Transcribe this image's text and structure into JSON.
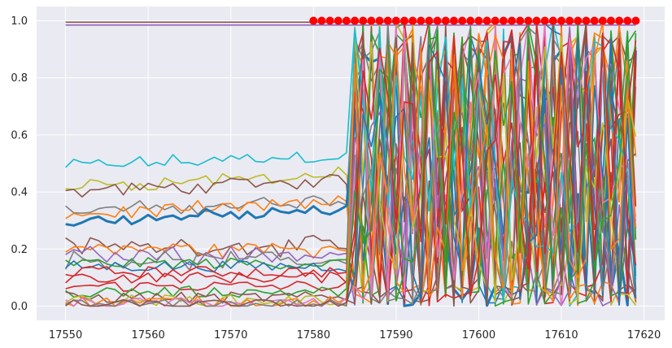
{
  "chart_data": {
    "type": "line",
    "title": "",
    "xlabel": "",
    "ylabel": "",
    "xlim": [
      17546.5,
      17622.5
    ],
    "ylim": [
      -0.05,
      1.05
    ],
    "grid": true,
    "x_ticks": [
      "17550",
      "17560",
      "17570",
      "17580",
      "17590",
      "17600",
      "17610",
      "17620"
    ],
    "y_ticks": [
      "0.0",
      "0.2",
      "0.4",
      "0.6",
      "0.8",
      "1.0"
    ],
    "x_start": 17550,
    "x_end": 17619,
    "change_point": 17584,
    "palette": [
      "#1f77b4",
      "#ff7f0e",
      "#2ca02c",
      "#d62728",
      "#9467bd",
      "#8c564b",
      "#e377c2",
      "#7f7f7f",
      "#bcbd22",
      "#17becf"
    ],
    "series_pre_levels": [
      0.995,
      0.985,
      0.49,
      0.42,
      0.4,
      0.33,
      0.32,
      0.3,
      0.21,
      0.2,
      0.18,
      0.16,
      0.15,
      0.14,
      0.12,
      0.1,
      0.07,
      0.05,
      0.03,
      0.02,
      0.015,
      0.01,
      0.005,
      0.003
    ],
    "series_pre_colors": [
      "#8c564b",
      "#9467bd",
      "#17becf",
      "#bcbd22",
      "#8c564b",
      "#7f7f7f",
      "#ff7f0e",
      "#1f77b4",
      "#8c564b",
      "#ff7f0e",
      "#9467bd",
      "#7f7f7f",
      "#2ca02c",
      "#1f77b4",
      "#d62728",
      "#d62728",
      "#d62728",
      "#2ca02c",
      "#8c564b",
      "#bcbd22",
      "#ff7f0e",
      "#e377c2",
      "#7f7f7f",
      "#8c564b"
    ],
    "markers": {
      "color": "#ff0000",
      "x": [
        17580,
        17581,
        17582,
        17583,
        17584,
        17585,
        17586,
        17587,
        17588,
        17589,
        17590,
        17591,
        17592,
        17593,
        17594,
        17595,
        17596,
        17597,
        17598,
        17599,
        17600,
        17601,
        17602,
        17603,
        17604,
        17605,
        17606,
        17607,
        17608,
        17609,
        17610,
        17611,
        17612,
        17613,
        17614,
        17615,
        17616,
        17617,
        17618,
        17619
      ],
      "y": 1.0
    }
  }
}
